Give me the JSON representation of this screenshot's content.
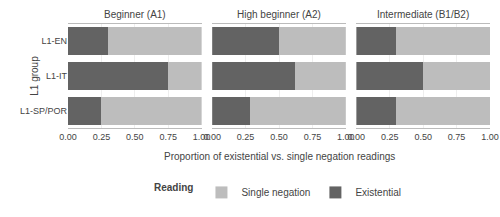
{
  "chart_data": {
    "type": "bar",
    "orientation": "horizontal",
    "stacked": true,
    "grid": true,
    "legend": "bottom",
    "legend_title": "Reading",
    "x_label": "Proportion of existential vs. single negation readings",
    "y_label": "L1 group",
    "categories": [
      "L1-EN",
      "L1-IT",
      "L1-SP/POR"
    ],
    "xlim": [
      0.0,
      1.0
    ],
    "xticks": [
      {
        "value": 0.0,
        "label": "0.00"
      },
      {
        "value": 0.25,
        "label": "0.25"
      },
      {
        "value": 0.5,
        "label": "0.50"
      },
      {
        "value": 0.75,
        "label": "0.75"
      },
      {
        "value": 1.0,
        "label": "1.00"
      }
    ],
    "facets": [
      {
        "title": "Beginner (A1)",
        "series": [
          {
            "name": "Existential",
            "color": "#636363",
            "values": [
              0.3,
              0.75,
              0.25
            ]
          },
          {
            "name": "Single negation",
            "color": "#bdbdbd",
            "values": [
              0.7,
              0.25,
              0.75
            ]
          }
        ]
      },
      {
        "title": "High beginner (A2)",
        "series": [
          {
            "name": "Existential",
            "color": "#636363",
            "values": [
              0.5,
              0.62,
              0.28
            ]
          },
          {
            "name": "Single negation",
            "color": "#bdbdbd",
            "values": [
              0.5,
              0.38,
              0.72
            ]
          }
        ]
      },
      {
        "title": "Intermediate (B1/B2)",
        "series": [
          {
            "name": "Existential",
            "color": "#636363",
            "values": [
              0.3,
              0.5,
              0.3
            ]
          },
          {
            "name": "Single negation",
            "color": "#bdbdbd",
            "values": [
              0.7,
              0.5,
              0.7
            ]
          }
        ]
      }
    ]
  }
}
